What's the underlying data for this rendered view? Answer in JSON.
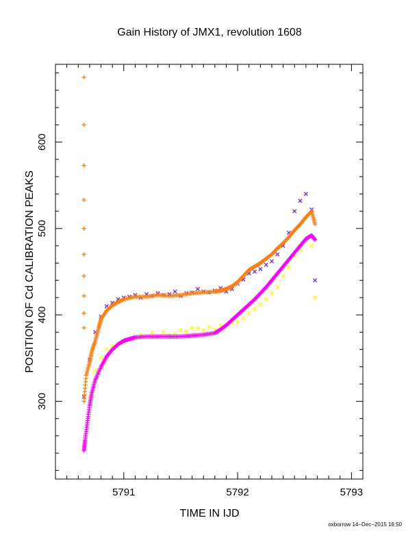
{
  "chart_data": {
    "type": "scatter",
    "title": "Gain History of JMX1, revolution 1608",
    "xlabel": "TIME IN IJD",
    "ylabel": "POSITION OF Cd CALIBRATION PEAKS",
    "xlim": [
      5790.4,
      5793.1
    ],
    "ylim": [
      210,
      690
    ],
    "x_ticks": [
      5791,
      5792,
      5793
    ],
    "x_tick_labels": [
      "5791",
      "5792",
      "5793"
    ],
    "y_ticks": [
      300,
      400,
      500,
      600
    ],
    "y_tick_labels": [
      "300",
      "400",
      "500",
      "600"
    ],
    "grid": false,
    "legend": "none",
    "footer": "oxborrow 14−Dec−2015 16:50",
    "series": [
      {
        "color": "#7b2fd6",
        "marker": "x",
        "x": [
          5790.65,
          5790.7,
          5790.75,
          5790.8,
          5790.85,
          5790.9,
          5790.95,
          5791.0,
          5791.05,
          5791.1,
          5791.15,
          5791.2,
          5791.25,
          5791.3,
          5791.35,
          5791.4,
          5791.45,
          5791.5,
          5791.55,
          5791.6,
          5791.65,
          5791.7,
          5791.75,
          5791.8,
          5791.85,
          5791.9,
          5791.95,
          5792.0,
          5792.05,
          5792.1,
          5792.15,
          5792.2,
          5792.25,
          5792.3,
          5792.35,
          5792.4,
          5792.45,
          5792.5,
          5792.55,
          5792.6,
          5792.65,
          5792.68
        ],
        "y": [
          305,
          348,
          380,
          398,
          410,
          414,
          418,
          420,
          421,
          423,
          420,
          424,
          422,
          425,
          423,
          424,
          427,
          422,
          425,
          426,
          430,
          427,
          426,
          428,
          431,
          427,
          430,
          436,
          441,
          448,
          450,
          453,
          458,
          462,
          470,
          480,
          495,
          520,
          532,
          540,
          522,
          440
        ]
      },
      {
        "color": "#ff7f0e",
        "marker": "+",
        "x": [
          5790.65,
          5790.67,
          5790.7,
          5790.72,
          5790.75,
          5790.78,
          5790.8,
          5790.85,
          5790.9,
          5790.95,
          5791.0,
          5791.1,
          5791.2,
          5791.3,
          5791.4,
          5791.5,
          5791.6,
          5791.7,
          5791.8,
          5791.85,
          5791.9,
          5791.95,
          5792.0,
          5792.05,
          5792.1,
          5792.15,
          5792.2,
          5792.25,
          5792.3,
          5792.35,
          5792.4,
          5792.45,
          5792.5,
          5792.55,
          5792.6,
          5792.65,
          5792.68
        ],
        "y": [
          300,
          330,
          345,
          358,
          370,
          385,
          395,
          405,
          411,
          415,
          418,
          421,
          421,
          423,
          422,
          423,
          425,
          426,
          427,
          428,
          430,
          433,
          438,
          445,
          452,
          456,
          460,
          465,
          470,
          477,
          483,
          490,
          498,
          505,
          513,
          520,
          505
        ]
      },
      {
        "color": "#ffff00",
        "marker": "x",
        "x": [
          5790.7,
          5790.75,
          5790.8,
          5790.85,
          5790.9,
          5790.95,
          5791.0,
          5791.05,
          5791.1,
          5791.15,
          5791.2,
          5791.25,
          5791.3,
          5791.35,
          5791.4,
          5791.45,
          5791.5,
          5791.55,
          5791.6,
          5791.65,
          5791.7,
          5791.75,
          5791.8,
          5791.85,
          5791.9,
          5791.95,
          5792.0,
          5792.05,
          5792.1,
          5792.15,
          5792.2,
          5792.25,
          5792.3,
          5792.35,
          5792.4,
          5792.45,
          5792.5,
          5792.55,
          5792.6,
          5792.65,
          5792.68
        ],
        "y": [
          305,
          335,
          350,
          360,
          364,
          367,
          370,
          372,
          374,
          377,
          375,
          379,
          375,
          380,
          377,
          378,
          382,
          381,
          385,
          384,
          382,
          386,
          383,
          388,
          386,
          390,
          392,
          396,
          402,
          407,
          412,
          418,
          425,
          432,
          445,
          455,
          468,
          475,
          485,
          480,
          420
        ]
      },
      {
        "color": "#ff00ff",
        "marker": "+",
        "x": [
          5790.65,
          5790.66,
          5790.68,
          5790.7,
          5790.72,
          5790.75,
          5790.8,
          5790.85,
          5790.9,
          5790.95,
          5791.0,
          5791.05,
          5791.1,
          5791.2,
          5791.3,
          5791.4,
          5791.5,
          5791.6,
          5791.7,
          5791.8,
          5791.85,
          5791.9,
          5791.95,
          5792.0,
          5792.05,
          5792.1,
          5792.15,
          5792.2,
          5792.25,
          5792.3,
          5792.35,
          5792.4,
          5792.45,
          5792.5,
          5792.55,
          5792.6,
          5792.65,
          5792.68
        ],
        "y": [
          243,
          255,
          275,
          295,
          310,
          325,
          340,
          352,
          360,
          366,
          370,
          372,
          374,
          375,
          375,
          375,
          375,
          376,
          377,
          379,
          383,
          388,
          394,
          400,
          406,
          412,
          418,
          425,
          432,
          440,
          448,
          456,
          464,
          472,
          480,
          488,
          492,
          487
        ]
      }
    ],
    "outliers": {
      "color": "#ff7f0e",
      "marker": "+",
      "x": [
        5790.65,
        5790.65,
        5790.65,
        5790.65,
        5790.65,
        5790.65,
        5790.65,
        5790.65,
        5790.65,
        5790.65
      ],
      "y": [
        675,
        620,
        573,
        533,
        500,
        470,
        445,
        422,
        402,
        385
      ]
    }
  }
}
